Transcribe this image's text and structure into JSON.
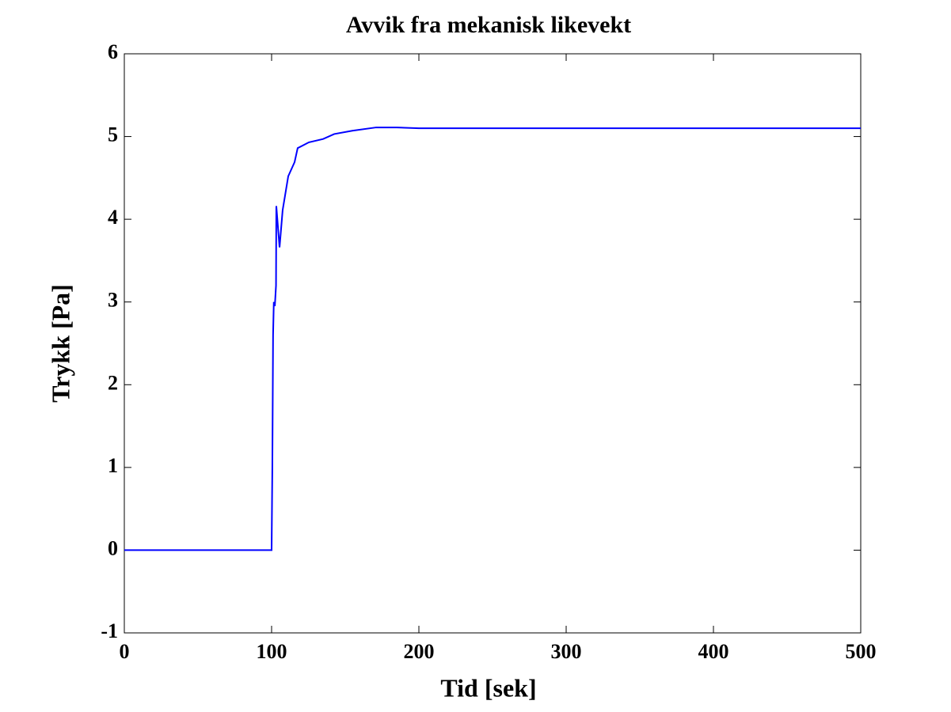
{
  "chart_data": {
    "type": "line",
    "title": "Avvik fra mekanisk likevekt",
    "x_label": "Tid [sek]",
    "y_label": "Trykk [Pa]",
    "x": [
      0,
      99,
      100,
      100.5,
      101,
      101.5,
      102.2,
      103,
      103.2,
      105.4,
      107.5,
      111.3,
      115.6,
      117.7,
      125.3,
      135,
      142.5,
      154.8,
      171,
      185,
      200,
      300,
      500
    ],
    "series": [
      {
        "name": "Trykk",
        "color": "#0000ff",
        "values": [
          0,
          0,
          0,
          1.0,
          2.6,
          3.0,
          2.95,
          3.2,
          4.16,
          3.66,
          4.11,
          4.52,
          4.69,
          4.86,
          4.93,
          4.97,
          5.03,
          5.07,
          5.11,
          5.11,
          5.1,
          5.1,
          5.1
        ]
      }
    ],
    "xlim": [
      0,
      500
    ],
    "xticks": [
      0,
      100,
      200,
      300,
      400,
      500
    ],
    "ylim": [
      -1,
      6
    ],
    "yticks": [
      -1,
      0,
      1,
      2,
      3,
      4,
      5,
      6
    ],
    "grid": false
  }
}
